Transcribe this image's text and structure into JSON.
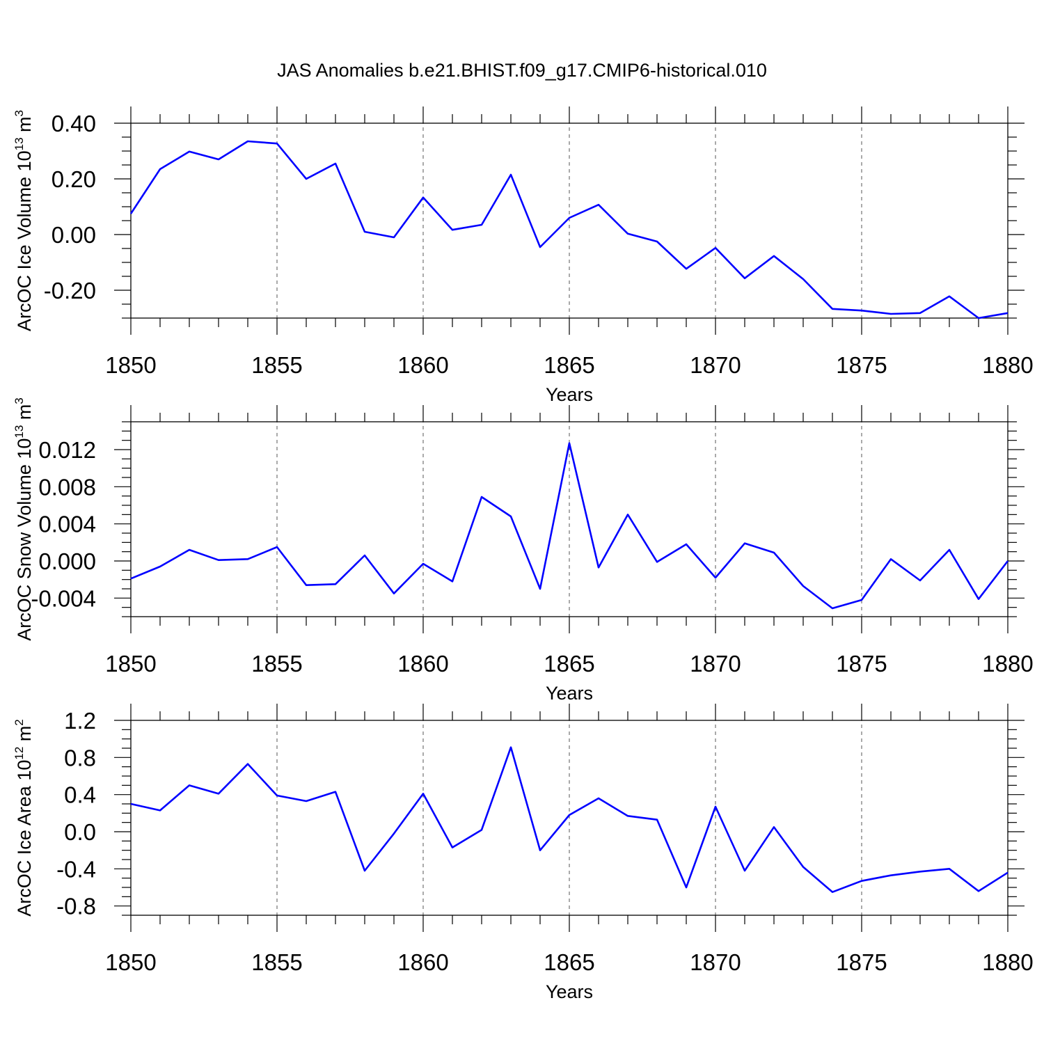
{
  "title": "JAS Anomalies b.e21.BHIST.f09_g17.CMIP6-historical.010",
  "colors": {
    "line": "#0000ff",
    "axis": "#000000",
    "grid": "#555555"
  },
  "chart_data": [
    {
      "type": "line",
      "ylabel": "ArcOC Ice Volume 10",
      "ylabel_exp": "13",
      "ylabel_unit": " m",
      "ylabel_unit_exp": "3",
      "xlabel": "Years",
      "xlim": [
        1850,
        1880
      ],
      "ylim": [
        -0.3,
        0.4
      ],
      "yticks": [
        -0.2,
        0.0,
        0.2,
        0.4
      ],
      "ytick_labels": [
        "-0.20",
        "0.00",
        "0.20",
        "0.40"
      ],
      "xticks": [
        1850,
        1855,
        1860,
        1865,
        1870,
        1875,
        1880
      ],
      "xtick_labels": [
        "1850",
        "1855",
        "1860",
        "1865",
        "1870",
        "1875",
        "1880"
      ],
      "vgrid": [
        1855,
        1860,
        1865,
        1870,
        1875
      ],
      "x": [
        1850,
        1851,
        1852,
        1853,
        1854,
        1855,
        1856,
        1857,
        1858,
        1859,
        1860,
        1861,
        1862,
        1863,
        1864,
        1865,
        1866,
        1867,
        1868,
        1869,
        1870,
        1871,
        1872,
        1873,
        1874,
        1875,
        1876,
        1877,
        1878,
        1879,
        1880
      ],
      "values": [
        0.075,
        0.235,
        0.298,
        0.27,
        0.335,
        0.327,
        0.2,
        0.255,
        0.01,
        -0.01,
        0.133,
        0.017,
        0.035,
        0.215,
        -0.045,
        0.06,
        0.107,
        0.003,
        -0.025,
        -0.123,
        -0.048,
        -0.157,
        -0.077,
        -0.16,
        -0.267,
        -0.273,
        -0.285,
        -0.282,
        -0.222,
        -0.3,
        -0.282
      ]
    },
    {
      "type": "line",
      "ylabel": "ArcOC Snow Volume 10",
      "ylabel_exp": "13",
      "ylabel_unit": " m",
      "ylabel_unit_exp": "3",
      "xlabel": "Years",
      "xlim": [
        1850,
        1880
      ],
      "ylim": [
        -0.006,
        0.015
      ],
      "yticks": [
        -0.004,
        0.0,
        0.004,
        0.008,
        0.012
      ],
      "ytick_labels": [
        "-0.004",
        "0.000",
        "0.004",
        "0.008",
        "0.012"
      ],
      "xticks": [
        1850,
        1855,
        1860,
        1865,
        1870,
        1875,
        1880
      ],
      "xtick_labels": [
        "1850",
        "1855",
        "1860",
        "1865",
        "1870",
        "1875",
        "1880"
      ],
      "vgrid": [
        1855,
        1860,
        1865,
        1870,
        1875
      ],
      "x": [
        1850,
        1851,
        1852,
        1853,
        1854,
        1855,
        1856,
        1857,
        1858,
        1859,
        1860,
        1861,
        1862,
        1863,
        1864,
        1865,
        1866,
        1867,
        1868,
        1869,
        1870,
        1871,
        1872,
        1873,
        1874,
        1875,
        1876,
        1877,
        1878,
        1879,
        1880
      ],
      "values": [
        -0.0019,
        -0.0006,
        0.0012,
        0.0001,
        0.0002,
        0.0015,
        -0.0026,
        -0.0025,
        0.0006,
        -0.0035,
        -0.0003,
        -0.0022,
        0.0069,
        0.0048,
        -0.003,
        0.0127,
        -0.0007,
        0.005,
        -0.0001,
        0.0018,
        -0.0018,
        0.0019,
        0.0009,
        -0.0027,
        -0.0051,
        -0.0042,
        0.0002,
        -0.0021,
        0.0012,
        -0.0041,
        0.0
      ]
    },
    {
      "type": "line",
      "ylabel": "ArcOC Ice Area 10",
      "ylabel_exp": "12",
      "ylabel_unit": " m",
      "ylabel_unit_exp": "2",
      "xlabel": "Years",
      "xlim": [
        1850,
        1880
      ],
      "ylim": [
        -0.9,
        1.2
      ],
      "yticks": [
        -0.8,
        -0.4,
        0.0,
        0.4,
        0.8,
        1.2
      ],
      "ytick_labels": [
        "-0.8",
        "-0.4",
        "0.0",
        "0.4",
        "0.8",
        "1.2"
      ],
      "xticks": [
        1850,
        1855,
        1860,
        1865,
        1870,
        1875,
        1880
      ],
      "xtick_labels": [
        "1850",
        "1855",
        "1860",
        "1865",
        "1870",
        "1875",
        "1880"
      ],
      "vgrid": [
        1855,
        1860,
        1865,
        1870,
        1875
      ],
      "x": [
        1850,
        1851,
        1852,
        1853,
        1854,
        1855,
        1856,
        1857,
        1858,
        1859,
        1860,
        1861,
        1862,
        1863,
        1864,
        1865,
        1866,
        1867,
        1868,
        1869,
        1870,
        1871,
        1872,
        1873,
        1874,
        1875,
        1876,
        1877,
        1878,
        1879,
        1880
      ],
      "values": [
        0.3,
        0.23,
        0.5,
        0.41,
        0.73,
        0.39,
        0.33,
        0.43,
        -0.42,
        -0.02,
        0.41,
        -0.17,
        0.02,
        0.91,
        -0.2,
        0.18,
        0.36,
        0.17,
        0.13,
        -0.6,
        0.27,
        -0.42,
        0.05,
        -0.38,
        -0.65,
        -0.53,
        -0.47,
        -0.43,
        -0.4,
        -0.64,
        -0.44
      ]
    }
  ]
}
